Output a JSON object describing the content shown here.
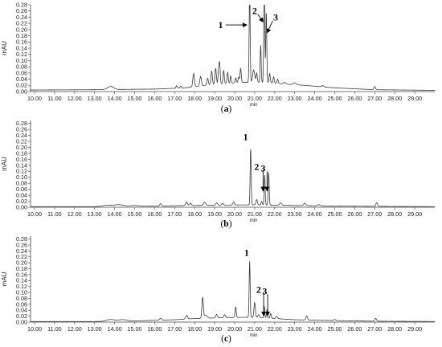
{
  "chart_data": [
    {
      "type": "line",
      "caption_open": "(",
      "caption_letter": "a",
      "caption_close": ")",
      "ylabel": "mAU",
      "xunit": "min",
      "xlim": [
        9.8,
        30.0
      ],
      "ylim": [
        0,
        0.28
      ],
      "xticks": [
        "10.00",
        "11.00",
        "12.00",
        "13.00",
        "14.00",
        "15.00",
        "16.00",
        "17.00",
        "18.00",
        "19.00",
        "20.00",
        "21.00",
        "22.00",
        "23.00",
        "24.00",
        "25.00",
        "26.00",
        "27.00",
        "28.00",
        "29.00"
      ],
      "yticks": [
        "0.00",
        "0.02",
        "0.04",
        "0.06",
        "0.08",
        "0.10",
        "0.12",
        "0.14",
        "0.16",
        "0.18",
        "0.20",
        "0.22",
        "0.24",
        "0.26",
        "0.28"
      ],
      "baseline": [
        [
          9.8,
          0.005
        ],
        [
          13.0,
          0.006
        ],
        [
          16.0,
          0.008
        ],
        [
          17.5,
          0.012
        ],
        [
          18.5,
          0.02
        ],
        [
          19.5,
          0.026
        ],
        [
          20.5,
          0.03
        ],
        [
          21.5,
          0.03
        ],
        [
          22.5,
          0.024
        ],
        [
          23.5,
          0.02
        ],
        [
          25.0,
          0.012
        ],
        [
          27.0,
          0.006
        ],
        [
          30.0,
          0.004
        ]
      ],
      "peaks": [
        [
          13.8,
          0.01,
          0.15
        ],
        [
          17.1,
          0.008,
          0.03
        ],
        [
          17.3,
          0.006,
          0.03
        ],
        [
          17.95,
          0.043,
          0.04
        ],
        [
          18.3,
          0.03,
          0.04
        ],
        [
          18.65,
          0.022,
          0.035
        ],
        [
          18.85,
          0.044,
          0.035
        ],
        [
          19.05,
          0.052,
          0.035
        ],
        [
          19.2,
          0.04,
          0.03
        ],
        [
          19.25,
          0.06,
          0.03
        ],
        [
          19.45,
          0.043,
          0.03
        ],
        [
          19.65,
          0.035,
          0.03
        ],
        [
          19.8,
          0.024,
          0.025
        ],
        [
          20.05,
          0.016,
          0.03
        ],
        [
          20.2,
          0.018,
          0.03
        ],
        [
          20.3,
          0.045,
          0.03
        ],
        [
          20.75,
          0.3,
          0.025
        ],
        [
          20.95,
          0.04,
          0.05
        ],
        [
          21.1,
          0.03,
          0.03
        ],
        [
          21.3,
          0.12,
          0.025
        ],
        [
          21.48,
          0.35,
          0.025
        ],
        [
          21.58,
          0.23,
          0.025
        ],
        [
          21.75,
          0.03,
          0.03
        ],
        [
          21.95,
          0.02,
          0.03
        ],
        [
          22.15,
          0.014,
          0.03
        ],
        [
          22.5,
          0.006,
          0.06
        ],
        [
          23.0,
          0.006,
          0.08
        ],
        [
          24.4,
          0.004,
          0.05
        ],
        [
          27.0,
          0.01,
          0.04
        ]
      ],
      "annotations": [
        {
          "label": "1",
          "text_x": 19.3,
          "text_y": 0.215,
          "arrow_from": [
            19.55,
            0.215
          ],
          "arrow_to": [
            20.6,
            0.215
          ]
        },
        {
          "label": "2",
          "text_x": 21.0,
          "text_y": 0.26,
          "arrow_from": [
            21.15,
            0.25
          ],
          "arrow_to": [
            21.42,
            0.225
          ]
        },
        {
          "label": "3",
          "text_x": 22.05,
          "text_y": 0.24,
          "arrow_from": [
            21.9,
            0.228
          ],
          "arrow_to": [
            21.62,
            0.19
          ]
        }
      ]
    },
    {
      "type": "line",
      "caption_open": "(",
      "caption_letter": "b",
      "caption_close": ")",
      "ylabel": "mAU",
      "xunit": "min",
      "xlim": [
        9.8,
        30.0
      ],
      "ylim": [
        0,
        0.29
      ],
      "xticks": [
        "10.00",
        "11.00",
        "12.00",
        "13.00",
        "14.00",
        "15.00",
        "16.00",
        "17.00",
        "18.00",
        "19.00",
        "20.00",
        "21.00",
        "22.00",
        "23.00",
        "24.00",
        "25.00",
        "26.00",
        "27.00",
        "28.00",
        "29.00"
      ],
      "yticks": [
        "0.00",
        "0.02",
        "0.04",
        "0.06",
        "0.08",
        "0.10",
        "0.12",
        "0.14",
        "0.16",
        "0.18",
        "0.20",
        "0.22",
        "0.24",
        "0.26",
        "0.28"
      ],
      "baseline": [
        [
          9.8,
          0.002
        ],
        [
          13.0,
          0.002
        ],
        [
          15.0,
          0.003
        ],
        [
          17.0,
          0.005
        ],
        [
          19.0,
          0.007
        ],
        [
          21.0,
          0.008
        ],
        [
          23.0,
          0.006
        ],
        [
          25.0,
          0.004
        ],
        [
          27.0,
          0.003
        ],
        [
          30.0,
          0.002
        ]
      ],
      "peaks": [
        [
          13.6,
          0.004,
          0.2
        ],
        [
          14.2,
          0.006,
          0.25
        ],
        [
          15.0,
          0.003,
          0.2
        ],
        [
          16.3,
          0.008,
          0.04
        ],
        [
          17.6,
          0.012,
          0.05
        ],
        [
          17.8,
          0.008,
          0.04
        ],
        [
          18.5,
          0.01,
          0.05
        ],
        [
          19.1,
          0.008,
          0.04
        ],
        [
          19.4,
          0.006,
          0.04
        ],
        [
          19.95,
          0.01,
          0.04
        ],
        [
          20.8,
          0.19,
          0.025
        ],
        [
          21.1,
          0.018,
          0.035
        ],
        [
          21.35,
          0.012,
          0.03
        ],
        [
          21.5,
          0.1,
          0.025
        ],
        [
          21.7,
          0.11,
          0.025
        ],
        [
          22.3,
          0.008,
          0.05
        ],
        [
          23.5,
          0.008,
          0.05
        ],
        [
          24.2,
          0.004,
          0.05
        ],
        [
          27.1,
          0.012,
          0.04
        ]
      ],
      "annotations": [
        {
          "label": "1",
          "text_x": 20.55,
          "text_y": 0.235,
          "arrow_from": null,
          "arrow_to": null
        },
        {
          "label": "2",
          "text_x": 21.1,
          "text_y": 0.135,
          "arrow_from": [
            21.42,
            0.125
          ],
          "arrow_to": [
            21.42,
            0.055
          ]
        },
        {
          "label": "3",
          "text_x": 21.42,
          "text_y": 0.13,
          "arrow_from": [
            21.62,
            0.12
          ],
          "arrow_to": [
            21.62,
            0.055
          ]
        }
      ]
    },
    {
      "type": "line",
      "caption_open": "(",
      "caption_letter": "c",
      "caption_close": ")",
      "ylabel": "mAU",
      "xunit": "min",
      "xlim": [
        9.8,
        30.0
      ],
      "ylim": [
        0,
        0.29
      ],
      "xticks": [
        "10.00",
        "11.00",
        "12.00",
        "13.00",
        "14.00",
        "15.00",
        "16.00",
        "17.00",
        "18.00",
        "19.00",
        "20.00",
        "21.00",
        "22.00",
        "23.00",
        "24.00",
        "25.00",
        "26.00",
        "27.00",
        "28.00",
        "29.00"
      ],
      "yticks": [
        "0.00",
        "0.02",
        "0.04",
        "0.06",
        "0.08",
        "0.10",
        "0.12",
        "0.14",
        "0.16",
        "0.18",
        "0.20",
        "0.22",
        "0.24",
        "0.26",
        "0.28"
      ],
      "baseline": [
        [
          9.8,
          0.002
        ],
        [
          13.0,
          0.002
        ],
        [
          15.0,
          0.004
        ],
        [
          17.0,
          0.008
        ],
        [
          18.0,
          0.012
        ],
        [
          19.0,
          0.014
        ],
        [
          20.0,
          0.016
        ],
        [
          21.0,
          0.016
        ],
        [
          22.0,
          0.012
        ],
        [
          23.0,
          0.008
        ],
        [
          25.0,
          0.005
        ],
        [
          27.0,
          0.003
        ],
        [
          30.0,
          0.002
        ]
      ],
      "peaks": [
        [
          13.8,
          0.006,
          0.2
        ],
        [
          14.4,
          0.005,
          0.2
        ],
        [
          16.3,
          0.006,
          0.05
        ],
        [
          17.6,
          0.012,
          0.05
        ],
        [
          18.4,
          0.07,
          0.035
        ],
        [
          18.55,
          0.01,
          0.08
        ],
        [
          19.1,
          0.012,
          0.04
        ],
        [
          19.5,
          0.01,
          0.04
        ],
        [
          20.05,
          0.036,
          0.03
        ],
        [
          20.75,
          0.19,
          0.025
        ],
        [
          21.0,
          0.05,
          0.035
        ],
        [
          21.2,
          0.01,
          0.04
        ],
        [
          21.48,
          0.04,
          0.025
        ],
        [
          21.62,
          0.03,
          0.025
        ],
        [
          21.8,
          0.016,
          0.03
        ],
        [
          22.1,
          0.008,
          0.04
        ],
        [
          23.6,
          0.014,
          0.04
        ],
        [
          25.0,
          0.004,
          0.05
        ],
        [
          27.05,
          0.01,
          0.04
        ]
      ],
      "annotations": [
        {
          "label": "1",
          "text_x": 20.6,
          "text_y": 0.235,
          "arrow_from": null,
          "arrow_to": null
        },
        {
          "label": "2",
          "text_x": 21.2,
          "text_y": 0.11,
          "arrow_from": [
            21.45,
            0.1
          ],
          "arrow_to": [
            21.45,
            0.022
          ]
        },
        {
          "label": "3",
          "text_x": 21.5,
          "text_y": 0.105,
          "arrow_from": [
            21.65,
            0.095
          ],
          "arrow_to": [
            21.65,
            0.022
          ]
        }
      ]
    }
  ]
}
